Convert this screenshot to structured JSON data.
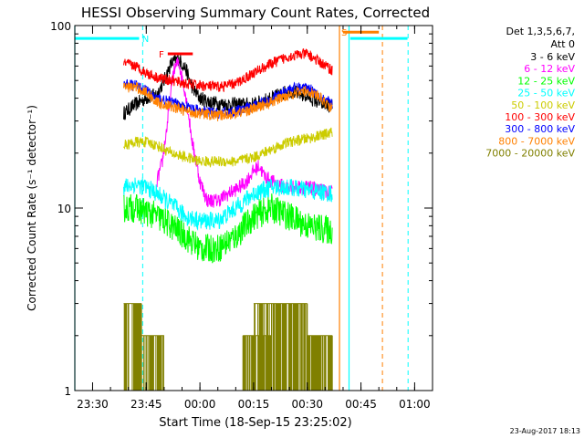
{
  "chart_data": {
    "type": "line",
    "title": "HESSI Observing Summary Count Rates, Corrected",
    "xlabel": "Start Time (18-Sep-15 23:25:02)",
    "ylabel": "Corrected Count Rate (s⁻¹ detector⁻¹)",
    "yscale": "log",
    "ylim": [
      1,
      100
    ],
    "xlim": [
      "23:25:02",
      "01:05:00"
    ],
    "x_ticks": [
      "23:30",
      "23:45",
      "00:00",
      "00:15",
      "00:30",
      "00:45",
      "01:00"
    ],
    "y_ticks": [
      "1",
      "10",
      "100"
    ],
    "timestamp": "23-Aug-2017 18:13",
    "legend": {
      "header": [
        "Det 1,3,5,6,7,",
        "Att 0"
      ],
      "placement": "right",
      "entries": [
        {
          "label": "3 - 6 keV",
          "color": "#000000"
        },
        {
          "label": "6 - 12 keV",
          "color": "#ff00ff"
        },
        {
          "label": "12 - 25 keV",
          "color": "#00ff00"
        },
        {
          "label": "25 - 50 keV",
          "color": "#00ffff"
        },
        {
          "label": "50 - 100 keV",
          "color": "#cccc00"
        },
        {
          "label": "100 - 300 keV",
          "color": "#ff0000"
        },
        {
          "label": "300 - 800 keV",
          "color": "#0000ff"
        },
        {
          "label": "800 - 7000 keV",
          "color": "#ff8000"
        },
        {
          "label": "7000 - 20000 keV",
          "color": "#808000"
        }
      ]
    },
    "series": [
      {
        "name": "3 - 6 keV",
        "color": "#000000",
        "noise": 0.04,
        "x": [
          "23:38:40",
          "23:42:00",
          "23:45:00",
          "23:48:00",
          "23:50:00",
          "23:52:00",
          "23:54:00",
          "23:56:00",
          "23:58:00",
          "00:00:00",
          "00:03:00",
          "00:07:00",
          "00:10:00",
          "00:15:00",
          "00:20:00",
          "00:25:00",
          "00:30:00",
          "00:33:00",
          "00:37:00"
        ],
        "y": [
          33,
          37,
          40,
          42,
          50,
          62,
          66,
          58,
          45,
          40,
          38,
          37,
          37,
          37,
          40,
          44,
          41,
          38,
          36
        ]
      },
      {
        "name": "6 - 12 keV",
        "color": "#ff00ff",
        "noise": 0.04,
        "x": [
          "23:48:00",
          "23:49:30",
          "23:51:00",
          "23:52:30",
          "23:54:00",
          "23:56:00",
          "23:58:00",
          "00:00:00",
          "00:02:00",
          "00:05:00",
          "00:08:00",
          "00:11:00",
          "00:13:00",
          "00:15:00",
          "00:16:30",
          "00:18:00",
          "00:20:00",
          "00:24:00",
          "00:30:00",
          "00:37:00"
        ],
        "y": [
          14,
          18,
          30,
          55,
          64,
          42,
          22,
          14,
          11,
          11,
          12,
          13,
          14,
          16,
          17,
          15,
          14,
          13,
          13,
          12
        ]
      },
      {
        "name": "12 - 25 keV",
        "color": "#00ff00",
        "noise": 0.08,
        "x": [
          "23:38:40",
          "23:42:00",
          "23:45:00",
          "23:48:00",
          "23:52:00",
          "23:56:00",
          "00:00:00",
          "00:05:00",
          "00:10:00",
          "00:15:00",
          "00:20:00",
          "00:25:00",
          "00:30:00",
          "00:37:00"
        ],
        "y": [
          10,
          10,
          9.5,
          9,
          8,
          7,
          6,
          6,
          7,
          9,
          10,
          9,
          8,
          7.5
        ]
      },
      {
        "name": "25 - 50 keV",
        "color": "#00ffff",
        "noise": 0.05,
        "x": [
          "23:38:40",
          "23:42:00",
          "23:45:00",
          "23:48:00",
          "23:52:00",
          "23:56:00",
          "00:00:00",
          "00:05:00",
          "00:10:00",
          "00:15:00",
          "00:20:00",
          "00:25:00",
          "00:30:00",
          "00:37:00"
        ],
        "y": [
          13,
          13.5,
          13,
          12,
          10.5,
          9,
          8.5,
          8.5,
          10,
          12,
          13,
          13,
          12.5,
          12
        ]
      },
      {
        "name": "50 - 100 keV",
        "color": "#cccc00",
        "noise": 0.03,
        "x": [
          "23:38:40",
          "23:42:00",
          "23:45:00",
          "23:48:00",
          "23:52:00",
          "23:56:00",
          "00:00:00",
          "00:05:00",
          "00:10:00",
          "00:15:00",
          "00:20:00",
          "00:25:00",
          "00:30:00",
          "00:34:00",
          "00:37:00"
        ],
        "y": [
          22,
          23,
          23,
          22,
          20,
          19,
          18,
          18,
          18,
          19,
          21,
          23,
          24,
          25,
          26
        ]
      },
      {
        "name": "100 - 300 keV",
        "color": "#ff0000",
        "noise": 0.03,
        "x": [
          "23:38:40",
          "23:42:00",
          "23:45:00",
          "23:48:00",
          "23:52:00",
          "23:56:00",
          "00:00:00",
          "00:05:00",
          "00:10:00",
          "00:15:00",
          "00:20:00",
          "00:25:00",
          "00:30:00",
          "00:33:00",
          "00:37:00"
        ],
        "y": [
          62,
          60,
          55,
          52,
          50,
          48,
          47,
          46,
          48,
          55,
          62,
          68,
          70,
          64,
          57
        ]
      },
      {
        "name": "300 - 800 keV",
        "color": "#0000ff",
        "noise": 0.03,
        "x": [
          "23:38:40",
          "23:42:00",
          "23:45:00",
          "23:48:00",
          "23:52:00",
          "23:56:00",
          "00:00:00",
          "00:05:00",
          "00:10:00",
          "00:15:00",
          "00:20:00",
          "00:25:00",
          "00:30:00",
          "00:33:00",
          "00:37:00"
        ],
        "y": [
          48,
          47,
          44,
          40,
          38,
          36,
          34,
          33,
          34,
          36,
          40,
          45,
          46,
          42,
          37
        ]
      },
      {
        "name": "800 - 7000 keV",
        "color": "#ff8000",
        "noise": 0.03,
        "x": [
          "23:38:40",
          "23:42:00",
          "23:45:00",
          "23:48:00",
          "23:52:00",
          "23:56:00",
          "00:00:00",
          "00:05:00",
          "00:10:00",
          "00:15:00",
          "00:20:00",
          "00:25:00",
          "00:30:00",
          "00:33:00",
          "00:37:00"
        ],
        "y": [
          46,
          46,
          43,
          38,
          36,
          34,
          33,
          32,
          33,
          35,
          38,
          42,
          44,
          41,
          35
        ]
      },
      {
        "name": "7000 - 20000 keV",
        "color": "#808000",
        "type": "bursts",
        "levels": [
          2,
          3
        ],
        "segments": [
          {
            "x": [
              "23:38:40",
              "23:43:40"
            ],
            "level": 3
          },
          {
            "x": [
              "23:43:40",
              "23:50:00"
            ],
            "level": 2
          },
          {
            "x": [
              "00:12:00",
              "00:20:00"
            ],
            "level": 2
          },
          {
            "x": [
              "00:15:00",
              "00:30:00"
            ],
            "level": 3
          },
          {
            "x": [
              "00:30:00",
              "00:37:00"
            ],
            "level": 2
          }
        ]
      }
    ],
    "flags": [
      {
        "label": "N",
        "color": "#00ffff",
        "label_x": "23:43:50",
        "bars": [
          [
            "23:25:02",
            "23:43:00"
          ],
          [
            "00:42:00",
            "00:58:00"
          ]
        ],
        "level": 85,
        "dashed_lines": [
          "23:44:00",
          "00:58:10"
        ],
        "solid_lines": [
          "23:25:02",
          "00:41:40"
        ]
      },
      {
        "label": "F",
        "color": "#ff0000",
        "label_x": "23:48:30",
        "bars": [
          [
            "23:51:00",
            "23:58:00"
          ]
        ],
        "level": 70
      },
      {
        "label": "S",
        "color": "#ff8000",
        "label_x": "00:39:30",
        "bars": [
          [
            "00:40:00",
            "00:50:00"
          ]
        ],
        "level": 92,
        "dashed_lines": [
          "00:51:00"
        ],
        "solid_lines": [
          "00:39:00"
        ]
      }
    ]
  }
}
